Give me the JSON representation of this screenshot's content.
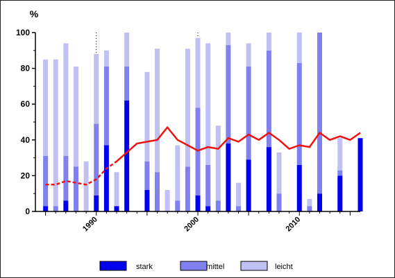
{
  "chart_data": {
    "type": "bar",
    "stacked": true,
    "title": "",
    "ylabel": "%",
    "xlabel": "",
    "ylim": [
      0,
      100
    ],
    "xlim": [
      1984,
      2016
    ],
    "y_ticks": [
      "0",
      "20",
      "40",
      "60",
      "80",
      "100"
    ],
    "x_tick_labels": [
      "1990",
      "2000",
      "2010"
    ],
    "x_tick_values": [
      1990,
      2000,
      2010
    ],
    "dotted_markers": [
      1990,
      2000,
      2010
    ],
    "grid": false,
    "legend_position": "bottom",
    "colors": {
      "stark": "#0000ee",
      "mittel": "#8080ee",
      "leicht": "#c0c0f2",
      "line": "#ee1111"
    },
    "x": [
      1985,
      1986,
      1987,
      1988,
      1989,
      1990,
      1991,
      1992,
      1993,
      1994,
      1995,
      1996,
      1997,
      1998,
      1999,
      2000,
      2001,
      2002,
      2003,
      2004,
      2005,
      2006,
      2007,
      2008,
      2009,
      2010,
      2011,
      2012,
      2013,
      2014,
      2015,
      2016
    ],
    "series": [
      {
        "name": "stark",
        "values": [
          3,
          0,
          6,
          0,
          0,
          9,
          37,
          3,
          62,
          0,
          12,
          0,
          0,
          0,
          0,
          9,
          3,
          0,
          38,
          0,
          29,
          0,
          36,
          0,
          0,
          26,
          0,
          10,
          0,
          20,
          0,
          41
        ]
      },
      {
        "name": "mittel",
        "values": [
          28,
          3,
          25,
          25,
          0,
          40,
          44,
          0,
          19,
          0,
          16,
          22,
          0,
          6,
          25,
          49,
          23,
          6,
          55,
          3,
          52,
          0,
          54,
          10,
          0,
          57,
          3,
          90,
          0,
          3,
          0,
          0
        ]
      },
      {
        "name": "leicht",
        "values": [
          54,
          82,
          63,
          56,
          28,
          39,
          9,
          19,
          19,
          0,
          50,
          69,
          12,
          31,
          66,
          39,
          68,
          42,
          7,
          13,
          13,
          0,
          10,
          23,
          0,
          17,
          4,
          0,
          0,
          18,
          0,
          0
        ]
      }
    ],
    "line": {
      "name": "",
      "x": [
        1985,
        1986,
        1987,
        1988,
        1989,
        1990,
        1991,
        1992,
        1993,
        1994,
        1995,
        1996,
        1997,
        1998,
        1999,
        2000,
        2001,
        2002,
        2003,
        2004,
        2005,
        2006,
        2007,
        2008,
        2009,
        2010,
        2011,
        2012,
        2013,
        2014,
        2015,
        2016
      ],
      "values": [
        15,
        15,
        17,
        16,
        15,
        18,
        24,
        28,
        33,
        38,
        39,
        40,
        47,
        40,
        37,
        34,
        36,
        35,
        41,
        39,
        43,
        40,
        44,
        40,
        35,
        37,
        36,
        44,
        40,
        42,
        40,
        44
      ],
      "dashed_until": 1992
    }
  }
}
